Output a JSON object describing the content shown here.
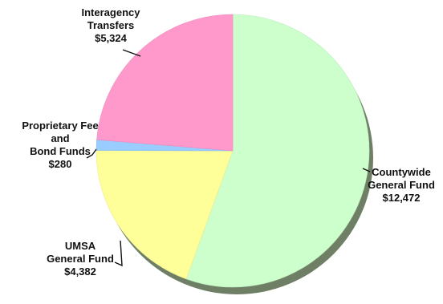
{
  "chart_data": {
    "type": "pie",
    "title": "",
    "slices": [
      {
        "name": "Countywide General Fund",
        "value": 12472,
        "value_label": "$12,472",
        "label_lines": [
          "Countywide",
          "General Fund",
          "$12,472"
        ],
        "color": "#ccffcc"
      },
      {
        "name": "UMSA General Fund",
        "value": 4382,
        "value_label": "$4,382",
        "label_lines": [
          "UMSA",
          "General Fund",
          "$4,382"
        ],
        "color": "#ffff99"
      },
      {
        "name": "Proprietary Fee and Bond Funds",
        "value": 280,
        "value_label": "$280",
        "label_lines": [
          "Proprietary Fee",
          "and",
          "Bond Funds",
          "$280"
        ],
        "color": "#99ccff"
      },
      {
        "name": "Interagency Transfers",
        "value": 5324,
        "value_label": "$5,324",
        "label_lines": [
          "Interagency",
          "Transfers",
          "$5,324"
        ],
        "color": "#ff99cc"
      }
    ],
    "start_angle_deg": 0,
    "direction": "clockwise",
    "shadow": true
  }
}
